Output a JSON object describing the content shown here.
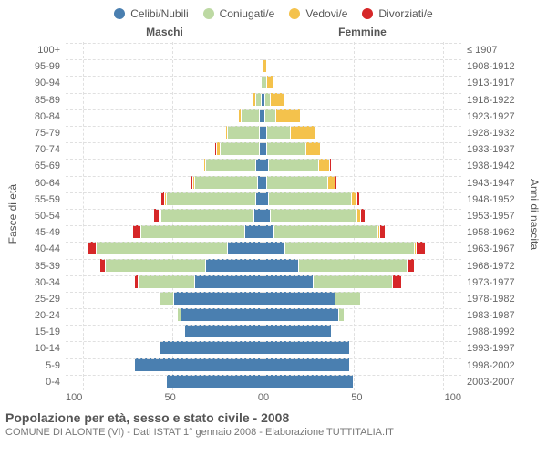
{
  "legend": [
    {
      "label": "Celibi/Nubili",
      "color": "#4a7fb0"
    },
    {
      "label": "Coniugati/e",
      "color": "#bdd9a3"
    },
    {
      "label": "Vedovi/e",
      "color": "#f4c24c"
    },
    {
      "label": "Divorziati/e",
      "color": "#d62728"
    }
  ],
  "headers": {
    "male": "Maschi",
    "female": "Femmine",
    "right_spacer": "≤ 1907"
  },
  "y_axis_left": "Fasce di età",
  "y_axis_right": "Anni di nascita",
  "x_ticks": [
    "100",
    "50",
    "0",
    "50",
    "100"
  ],
  "x_max": 110,
  "title": "Popolazione per età, sesso e stato civile - 2008",
  "subtitle": "COMUNE DI ALONTE (VI) - Dati ISTAT 1° gennaio 2008 - Elaborazione TUTTITALIA.IT",
  "colors": {
    "celibi": "#4a7fb0",
    "coniugati": "#bdd9a3",
    "vedovi": "#f4c24c",
    "divorziati": "#d62728"
  },
  "rows": [
    {
      "age": "100+",
      "birth": "≤ 1907",
      "m": [
        0,
        0,
        0,
        0
      ],
      "f": [
        0,
        0,
        0,
        0
      ]
    },
    {
      "age": "95-99",
      "birth": "1908-1912",
      "m": [
        0,
        0,
        0,
        0
      ],
      "f": [
        0,
        0,
        2,
        0
      ]
    },
    {
      "age": "90-94",
      "birth": "1913-1917",
      "m": [
        0,
        1,
        0,
        0
      ],
      "f": [
        0,
        2,
        4,
        0
      ]
    },
    {
      "age": "85-89",
      "birth": "1918-1922",
      "m": [
        1,
        3,
        2,
        0
      ],
      "f": [
        1,
        3,
        8,
        0
      ]
    },
    {
      "age": "80-84",
      "birth": "1923-1927",
      "m": [
        2,
        10,
        2,
        0
      ],
      "f": [
        1,
        6,
        14,
        0
      ]
    },
    {
      "age": "75-79",
      "birth": "1928-1932",
      "m": [
        2,
        18,
        1,
        0
      ],
      "f": [
        2,
        13,
        14,
        0
      ]
    },
    {
      "age": "70-74",
      "birth": "1933-1937",
      "m": [
        2,
        22,
        2,
        1
      ],
      "f": [
        2,
        22,
        8,
        0
      ]
    },
    {
      "age": "65-69",
      "birth": "1938-1942",
      "m": [
        4,
        28,
        1,
        0
      ],
      "f": [
        3,
        28,
        6,
        1
      ]
    },
    {
      "age": "60-64",
      "birth": "1943-1947",
      "m": [
        3,
        35,
        1,
        1
      ],
      "f": [
        2,
        34,
        4,
        1
      ]
    },
    {
      "age": "55-59",
      "birth": "1948-1952",
      "m": [
        4,
        50,
        1,
        2
      ],
      "f": [
        3,
        46,
        3,
        2
      ]
    },
    {
      "age": "50-54",
      "birth": "1953-1957",
      "m": [
        5,
        52,
        1,
        3
      ],
      "f": [
        4,
        48,
        2,
        3
      ]
    },
    {
      "age": "45-49",
      "birth": "1958-1962",
      "m": [
        10,
        58,
        0,
        5
      ],
      "f": [
        6,
        58,
        1,
        3
      ]
    },
    {
      "age": "40-44",
      "birth": "1963-1967",
      "m": [
        20,
        73,
        0,
        5
      ],
      "f": [
        12,
        72,
        1,
        5
      ]
    },
    {
      "age": "35-39",
      "birth": "1968-1972",
      "m": [
        32,
        56,
        0,
        3
      ],
      "f": [
        20,
        60,
        0,
        4
      ]
    },
    {
      "age": "30-34",
      "birth": "1973-1977",
      "m": [
        38,
        32,
        0,
        2
      ],
      "f": [
        28,
        44,
        0,
        5
      ]
    },
    {
      "age": "25-29",
      "birth": "1978-1982",
      "m": [
        50,
        8,
        0,
        0
      ],
      "f": [
        40,
        14,
        0,
        0
      ]
    },
    {
      "age": "20-24",
      "birth": "1983-1987",
      "m": [
        46,
        2,
        0,
        0
      ],
      "f": [
        42,
        3,
        0,
        0
      ]
    },
    {
      "age": "15-19",
      "birth": "1988-1992",
      "m": [
        44,
        0,
        0,
        0
      ],
      "f": [
        38,
        0,
        0,
        0
      ]
    },
    {
      "age": "10-14",
      "birth": "1993-1997",
      "m": [
        58,
        0,
        0,
        0
      ],
      "f": [
        48,
        0,
        0,
        0
      ]
    },
    {
      "age": "5-9",
      "birth": "1998-2002",
      "m": [
        72,
        0,
        0,
        0
      ],
      "f": [
        48,
        0,
        0,
        0
      ]
    },
    {
      "age": "0-4",
      "birth": "2003-2007",
      "m": [
        54,
        0,
        0,
        0
      ],
      "f": [
        50,
        0,
        0,
        0
      ]
    }
  ]
}
